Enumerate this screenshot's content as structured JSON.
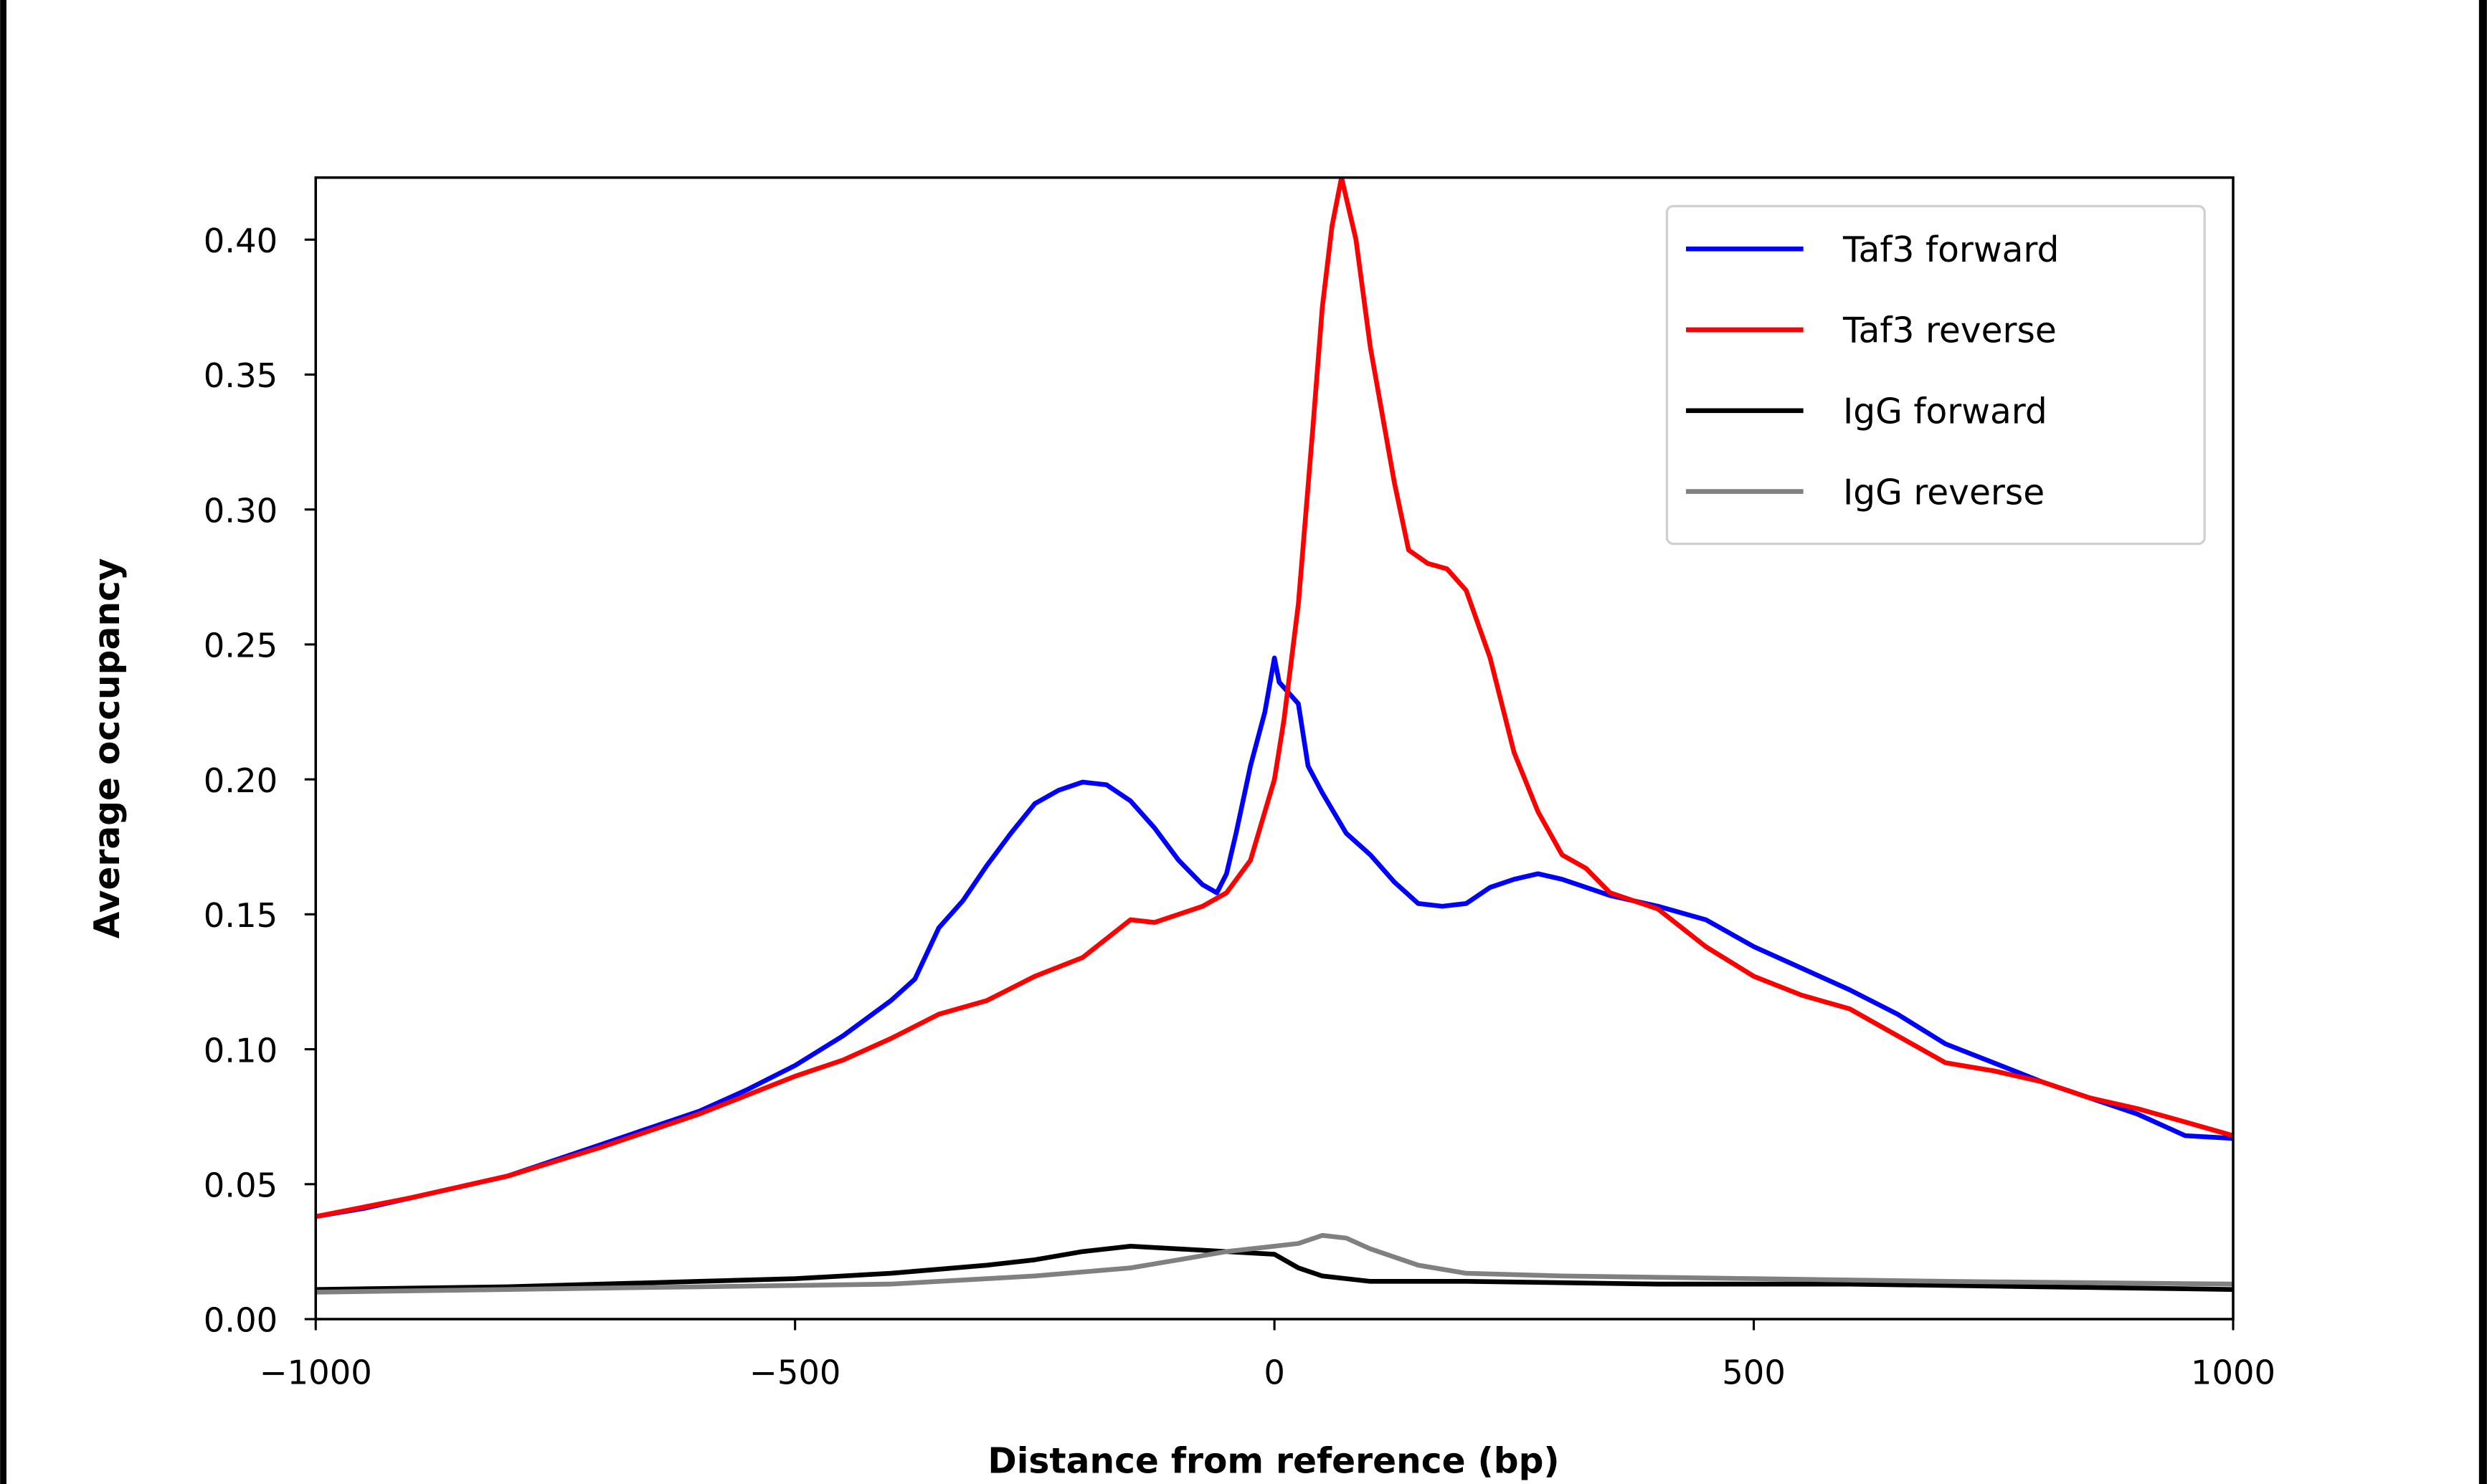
{
  "chart_data": {
    "type": "line",
    "title": "",
    "xlabel": "Distance from reference (bp)",
    "ylabel": "Average occupancy",
    "xlim": [
      -1000,
      1000
    ],
    "ylim": [
      0,
      0.423
    ],
    "xticks": [
      -1000,
      -500,
      0,
      500,
      1000
    ],
    "xtick_labels": [
      "−1000",
      "−500",
      "0",
      "500",
      "1000"
    ],
    "yticks": [
      0,
      0.05,
      0.1,
      0.15,
      0.2,
      0.25,
      0.3,
      0.35,
      0.4
    ],
    "ytick_labels": [
      "0.00",
      "0.05",
      "0.10",
      "0.15",
      "0.20",
      "0.25",
      "0.30",
      "0.35",
      "0.40"
    ],
    "grid": false,
    "legend_position": "top-right",
    "series": [
      {
        "name": "Taf3 forward",
        "color": "#0000ff",
        "x": [
          -1000,
          -950,
          -900,
          -850,
          -800,
          -750,
          -700,
          -650,
          -600,
          -550,
          -500,
          -450,
          -400,
          -375,
          -350,
          -325,
          -300,
          -275,
          -250,
          -225,
          -200,
          -175,
          -150,
          -125,
          -100,
          -75,
          -60,
          -50,
          -40,
          -25,
          -10,
          0,
          5,
          15,
          25,
          35,
          50,
          75,
          100,
          125,
          150,
          175,
          200,
          225,
          250,
          275,
          300,
          350,
          400,
          450,
          500,
          550,
          600,
          650,
          700,
          750,
          800,
          850,
          900,
          950,
          1000
        ],
        "y": [
          0.038,
          0.041,
          0.045,
          0.049,
          0.053,
          0.059,
          0.065,
          0.071,
          0.077,
          0.085,
          0.094,
          0.105,
          0.118,
          0.126,
          0.145,
          0.155,
          0.168,
          0.18,
          0.191,
          0.196,
          0.199,
          0.198,
          0.192,
          0.182,
          0.17,
          0.161,
          0.158,
          0.165,
          0.18,
          0.205,
          0.225,
          0.245,
          0.236,
          0.232,
          0.228,
          0.205,
          0.195,
          0.18,
          0.172,
          0.162,
          0.154,
          0.153,
          0.154,
          0.16,
          0.163,
          0.165,
          0.163,
          0.157,
          0.153,
          0.148,
          0.138,
          0.13,
          0.122,
          0.113,
          0.102,
          0.095,
          0.088,
          0.082,
          0.076,
          0.068,
          0.067
        ]
      },
      {
        "name": "Taf3 reverse",
        "color": "#ff0000",
        "x": [
          -1000,
          -900,
          -800,
          -700,
          -600,
          -500,
          -450,
          -400,
          -350,
          -300,
          -250,
          -200,
          -150,
          -125,
          -100,
          -75,
          -50,
          -25,
          0,
          10,
          25,
          40,
          50,
          60,
          70,
          85,
          100,
          125,
          140,
          160,
          180,
          200,
          225,
          250,
          275,
          300,
          325,
          350,
          400,
          450,
          500,
          550,
          600,
          650,
          700,
          750,
          800,
          850,
          900,
          950,
          1000
        ],
        "y": [
          0.038,
          0.045,
          0.053,
          0.064,
          0.076,
          0.09,
          0.096,
          0.104,
          0.113,
          0.118,
          0.127,
          0.134,
          0.148,
          0.147,
          0.15,
          0.153,
          0.158,
          0.17,
          0.2,
          0.222,
          0.265,
          0.33,
          0.375,
          0.405,
          0.423,
          0.4,
          0.36,
          0.31,
          0.285,
          0.28,
          0.278,
          0.27,
          0.245,
          0.21,
          0.188,
          0.172,
          0.167,
          0.158,
          0.152,
          0.138,
          0.127,
          0.12,
          0.115,
          0.105,
          0.095,
          0.092,
          0.088,
          0.082,
          0.078,
          0.073,
          0.068
        ]
      },
      {
        "name": "IgG forward",
        "color": "#000000",
        "x": [
          -1000,
          -800,
          -600,
          -500,
          -400,
          -300,
          -250,
          -200,
          -150,
          -100,
          -50,
          0,
          25,
          50,
          100,
          200,
          400,
          600,
          800,
          1000
        ],
        "y": [
          0.011,
          0.012,
          0.014,
          0.015,
          0.017,
          0.02,
          0.022,
          0.025,
          0.027,
          0.026,
          0.025,
          0.024,
          0.019,
          0.016,
          0.014,
          0.014,
          0.013,
          0.013,
          0.012,
          0.011
        ]
      },
      {
        "name": "IgG reverse",
        "color": "#808080",
        "x": [
          -1000,
          -800,
          -600,
          -400,
          -250,
          -150,
          -100,
          -50,
          0,
          25,
          50,
          75,
          100,
          150,
          200,
          300,
          500,
          700,
          1000
        ],
        "y": [
          0.01,
          0.011,
          0.012,
          0.013,
          0.016,
          0.019,
          0.022,
          0.025,
          0.027,
          0.028,
          0.031,
          0.03,
          0.026,
          0.02,
          0.017,
          0.016,
          0.015,
          0.014,
          0.013
        ]
      }
    ]
  }
}
